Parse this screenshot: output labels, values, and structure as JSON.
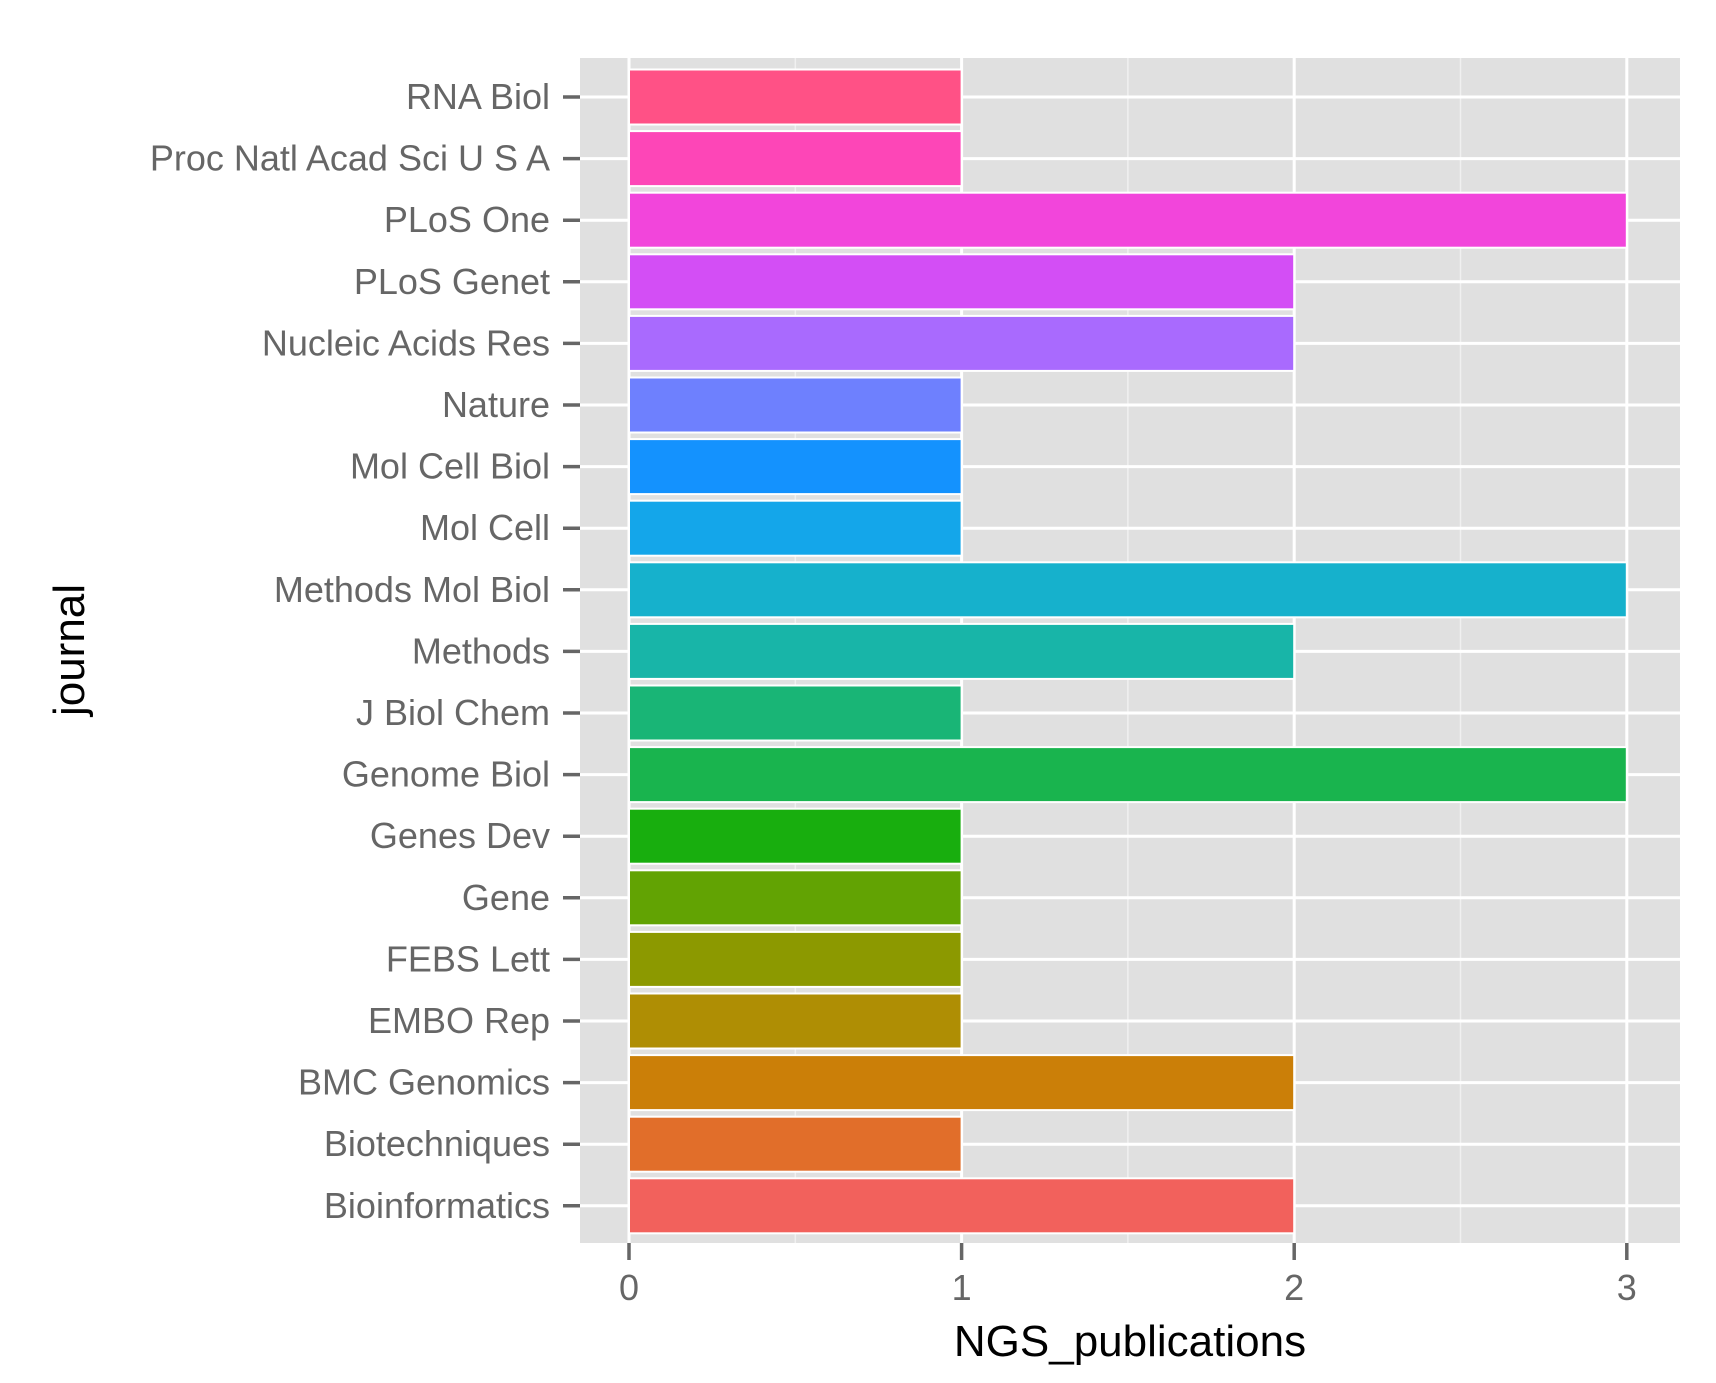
{
  "chart_data": {
    "type": "bar",
    "orientation": "horizontal",
    "xlabel": "NGS_publications",
    "ylabel": "journal",
    "xlim": [
      0,
      3.15
    ],
    "xticks": [
      0,
      1,
      2,
      3
    ],
    "grid": true,
    "legend": "none",
    "categories": [
      "Bioinformatics",
      "Biotechniques",
      "BMC Genomics",
      "EMBO Rep",
      "FEBS Lett",
      "Gene",
      "Genes Dev",
      "Genome Biol",
      "J Biol Chem",
      "Methods",
      "Methods Mol Biol",
      "Mol Cell",
      "Mol Cell Biol",
      "Nature",
      "Nucleic Acids Res",
      "PLoS Genet",
      "PLoS One",
      "Proc Natl Acad Sci U S A",
      "RNA Biol"
    ],
    "values": [
      2,
      1,
      2,
      1,
      1,
      1,
      1,
      3,
      1,
      2,
      3,
      1,
      1,
      1,
      2,
      2,
      3,
      1,
      1
    ],
    "colors": [
      "#F2615C",
      "#E16E2A",
      "#CB7F08",
      "#AF8E04",
      "#8C9900",
      "#62A303",
      "#18AE0E",
      "#19B44E",
      "#19B576",
      "#18B5A8",
      "#16B1CC",
      "#14A6EA",
      "#1492FE",
      "#6E80FE",
      "#A96AFE",
      "#D34EF5",
      "#F245DB",
      "#FD46B7",
      "#FF5186"
    ]
  }
}
